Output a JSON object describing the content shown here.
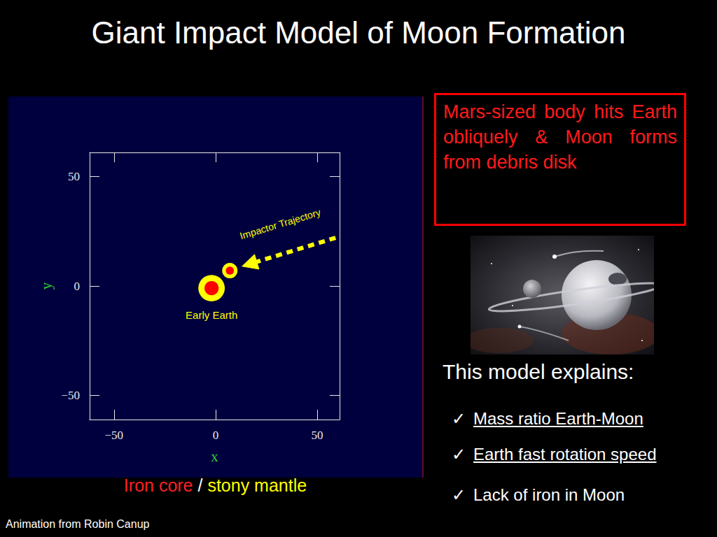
{
  "title": "Giant Impact Model of Moon Formation",
  "callout": "Mars-sized body hits Earth obliquely & Moon forms from debris disk",
  "explains": {
    "heading": "This model explains:",
    "check": "✓",
    "items": [
      {
        "text": "Mass ratio Earth-Moon",
        "underlined": true
      },
      {
        "text": "Earth fast rotation speed",
        "underlined": true
      },
      {
        "text": "Lack of iron in Moon",
        "underlined": false
      }
    ]
  },
  "caption": [
    {
      "text": "Iron core",
      "color": "#ff2020"
    },
    {
      "text": "/",
      "color": "#ffffff"
    },
    {
      "text": "stony mantle",
      "color": "#ffff00"
    }
  ],
  "credit": "Animation from Robin Canup",
  "chart_data": {
    "type": "scatter",
    "xlabel": "x",
    "ylabel": "y",
    "xlim": [
      -62,
      61
    ],
    "ylim": [
      -61,
      61
    ],
    "xticks": [
      {
        "value": -50,
        "label": "−50"
      },
      0,
      50
    ],
    "yticks": [
      {
        "value": -50,
        "label": "−50"
      },
      0,
      50
    ],
    "grid": false,
    "bodies": [
      {
        "label": "Early Earth",
        "x": -2,
        "y": -1,
        "radius": 6.5,
        "core_radius": 3.5,
        "color": "#ffff00",
        "core_color": "#ff0000"
      },
      {
        "x": 7,
        "y": 7,
        "radius": 3.8,
        "core_radius": 2,
        "color": "#ffff00",
        "core_color": "#ff0000"
      }
    ],
    "trajectory": {
      "label": "Impactor Trajectory",
      "from": [
        59,
        22
      ],
      "to": [
        13,
        9
      ],
      "color": "#ffff00"
    }
  }
}
